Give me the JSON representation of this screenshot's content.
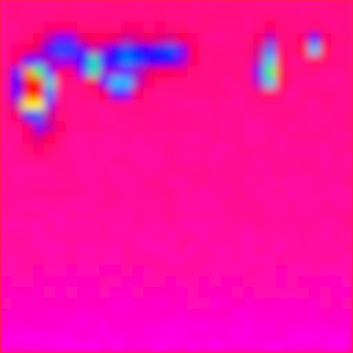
{
  "chart_data": {
    "type": "heatmap",
    "title": "",
    "xlabel": "",
    "ylabel": "",
    "grid": false,
    "legend": "none",
    "colormap": [
      "#ff00ff",
      "#ff0a8c",
      "#ff0040",
      "#8000ff",
      "#0000ff",
      "#00c8ff",
      "#00ff66",
      "#ffff00",
      "#ff8000",
      "#ff0000"
    ],
    "value_range": [
      0,
      1
    ],
    "resolution": [
      32,
      32
    ],
    "description_note": "",
    "hotspots": [
      {
        "cx": 0.08,
        "cy": 0.23,
        "sx": 0.022,
        "sy": 0.035,
        "v": 1.0
      },
      {
        "cx": 0.12,
        "cy": 0.245,
        "sx": 0.02,
        "sy": 0.03,
        "v": 0.78
      },
      {
        "cx": 0.09,
        "cy": 0.3,
        "sx": 0.025,
        "sy": 0.025,
        "v": 0.55
      },
      {
        "cx": 0.26,
        "cy": 0.19,
        "sx": 0.02,
        "sy": 0.02,
        "v": 0.58
      },
      {
        "cx": 0.34,
        "cy": 0.245,
        "sx": 0.035,
        "sy": 0.018,
        "v": 0.52
      },
      {
        "cx": 0.18,
        "cy": 0.14,
        "sx": 0.05,
        "sy": 0.03,
        "v": 0.38
      },
      {
        "cx": 0.36,
        "cy": 0.16,
        "sx": 0.05,
        "sy": 0.035,
        "v": 0.42
      },
      {
        "cx": 0.48,
        "cy": 0.15,
        "sx": 0.04,
        "sy": 0.03,
        "v": 0.38
      },
      {
        "cx": 0.76,
        "cy": 0.16,
        "sx": 0.018,
        "sy": 0.04,
        "v": 0.45
      },
      {
        "cx": 0.76,
        "cy": 0.22,
        "sx": 0.02,
        "sy": 0.02,
        "v": 0.5
      },
      {
        "cx": 0.89,
        "cy": 0.13,
        "sx": 0.018,
        "sy": 0.02,
        "v": 0.5
      },
      {
        "cx": 0.12,
        "cy": 0.36,
        "sx": 0.03,
        "sy": 0.04,
        "v": 0.2
      }
    ]
  }
}
